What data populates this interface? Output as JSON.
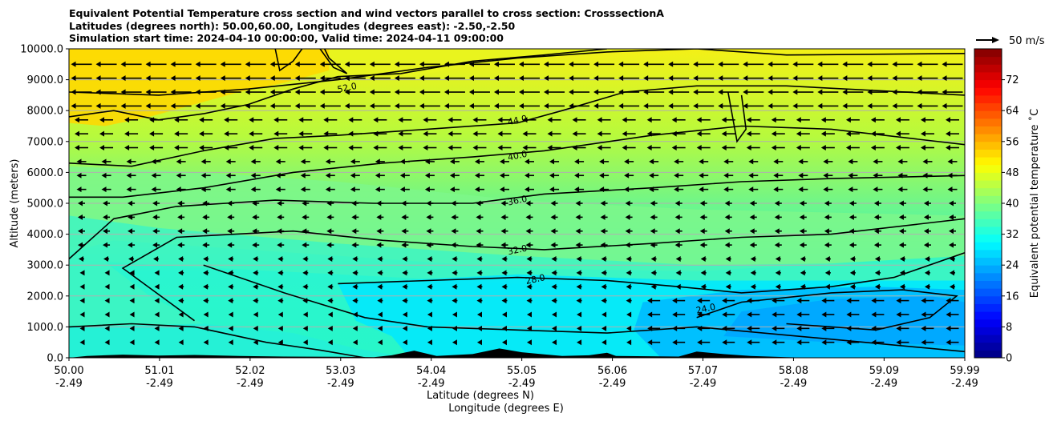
{
  "title_lines": [
    "Equivalent Potential Temperature cross section and wind vectors parallel to cross section: CrosssectionA",
    "Latitudes (degrees north): 50.00,60.00, Longitudes (degrees east): -2.50,-2.50",
    "Simulation start time: 2024-04-10 00:00:00, Valid time: 2024-04-11 09:00:00"
  ],
  "quiver_key_label": "50 m/s",
  "chart_data": {
    "type": "heatmap",
    "title": "Equivalent Potential Temperature cross section and wind vectors parallel to cross section: CrosssectionA",
    "ylabel": "Altitude (meters)",
    "xlabel_line1": "Latitude (degrees N)",
    "xlabel_line2": "Longitude (degrees E)",
    "ylim": [
      0,
      10000
    ],
    "y_ticks": [
      {
        "value": 0,
        "label": "0.0"
      },
      {
        "value": 1000,
        "label": "1000.0"
      },
      {
        "value": 2000,
        "label": "2000.0"
      },
      {
        "value": 3000,
        "label": "3000.0"
      },
      {
        "value": 4000,
        "label": "4000.0"
      },
      {
        "value": 5000,
        "label": "5000.0"
      },
      {
        "value": 6000,
        "label": "6000.0"
      },
      {
        "value": 7000,
        "label": "7000.0"
      },
      {
        "value": 8000,
        "label": "8000.0"
      },
      {
        "value": 9000,
        "label": "9000.0"
      },
      {
        "value": 10000,
        "label": "10000.0"
      }
    ],
    "x_range": [
      50.0,
      59.99
    ],
    "x_ticks": [
      {
        "lat": 50.0,
        "lat_label": "50.00",
        "lon_label": "-2.49"
      },
      {
        "lat": 51.01,
        "lat_label": "51.01",
        "lon_label": "-2.49"
      },
      {
        "lat": 52.02,
        "lat_label": "52.02",
        "lon_label": "-2.49"
      },
      {
        "lat": 53.03,
        "lat_label": "53.03",
        "lon_label": "-2.49"
      },
      {
        "lat": 54.04,
        "lat_label": "54.04",
        "lon_label": "-2.49"
      },
      {
        "lat": 55.05,
        "lat_label": "55.05",
        "lon_label": "-2.49"
      },
      {
        "lat": 56.06,
        "lat_label": "56.06",
        "lon_label": "-2.49"
      },
      {
        "lat": 57.07,
        "lat_label": "57.07",
        "lon_label": "-2.49"
      },
      {
        "lat": 58.08,
        "lat_label": "58.08",
        "lon_label": "-2.49"
      },
      {
        "lat": 59.09,
        "lat_label": "59.09",
        "lon_label": "-2.49"
      },
      {
        "lat": 59.99,
        "lat_label": "59.99",
        "lon_label": "-2.49"
      }
    ],
    "grid": "horizontal",
    "colorbar": {
      "label": "Equivalent potential temperature ˚C",
      "range": [
        0,
        80
      ],
      "ticks": [
        0,
        8,
        16,
        24,
        32,
        40,
        48,
        56,
        64,
        72
      ],
      "colormap": "jet"
    },
    "contours": [
      {
        "level": 28.0,
        "label": "28.0",
        "lat": 55.2,
        "alt": 2550
      },
      {
        "level": 32.0,
        "label": "32.0",
        "lat": 55.0,
        "alt": 3500
      },
      {
        "level": 36.0,
        "label": "36.0",
        "lat": 55.0,
        "alt": 5100
      },
      {
        "level": 40.0,
        "label": "40.0",
        "lat": 55.0,
        "alt": 6550
      },
      {
        "level": 44.0,
        "label": "44.0",
        "lat": 55.0,
        "alt": 7700
      },
      {
        "level": 52.0,
        "label": "52.0",
        "lat": 53.1,
        "alt": 8750
      },
      {
        "level": 24.0,
        "label": "24.0",
        "lat": 57.1,
        "alt": 1600
      }
    ],
    "wind_vectors": {
      "direction": "toward lower latitude",
      "reference_speed": "50 m/s"
    },
    "terrain": "black filled orography along the bottom"
  }
}
